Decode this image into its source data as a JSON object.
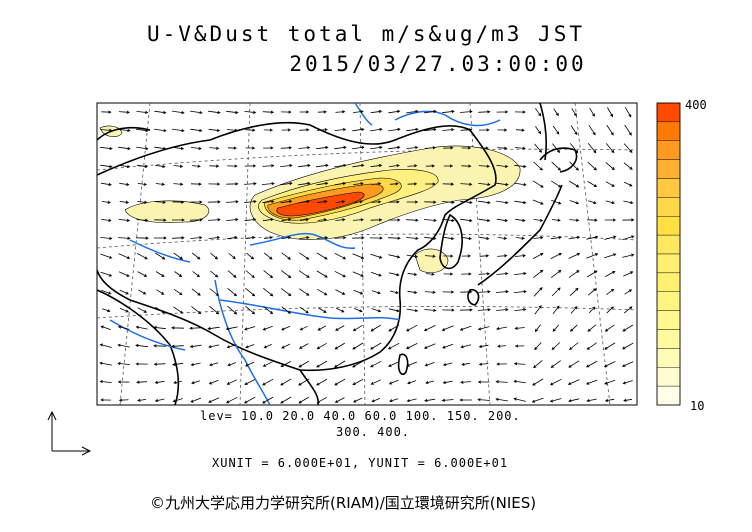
{
  "header": {
    "title_line1": "U-V&Dust total m/s&ug/m3 JST",
    "title_line2": "2015/03/27.03:00:00"
  },
  "contour_levels": {
    "line1": "lev= 10.0 20.0 40.0 60.0 100. 150. 200.",
    "line2": "300. 400."
  },
  "units_text": "XUNIT = 6.000E+01, YUNIT = 6.000E+01",
  "credit": "©九州大学応用力学研究所(RIAM)/国立環境研究所(NIES)",
  "colorbar": {
    "max_label": "400",
    "min_label": "10",
    "colors": [
      "#ff4a00",
      "#ff7a00",
      "#ff9a20",
      "#ffb030",
      "#ffc840",
      "#ffd848",
      "#ffe040",
      "#ffe860",
      "#ffee70",
      "#fff070",
      "#fff480",
      "#fff890",
      "#fffaa0",
      "#fffcb8",
      "#fffdd0",
      "#fffee6"
    ]
  },
  "colors": {
    "dust_low": "#fbf3b0",
    "dust_mid": "#ffd84a",
    "dust_high": "#ff9a20",
    "dust_peak": "#ff4a00",
    "river": "#1f6fe8",
    "coast": "#000000"
  }
}
